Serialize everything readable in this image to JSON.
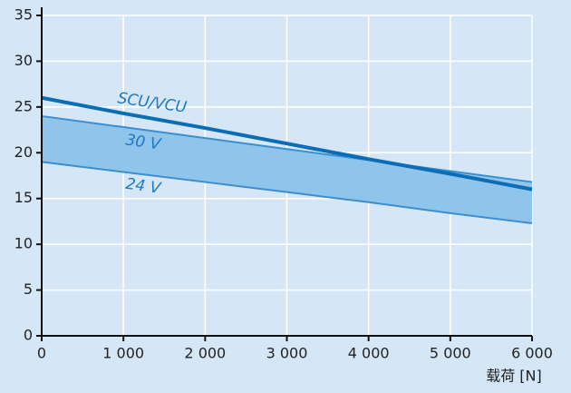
{
  "chart_data": {
    "type": "line",
    "x": [
      0,
      1000,
      2000,
      3000,
      4000,
      5000,
      6000
    ],
    "series": [
      {
        "name": "SCU/VCU",
        "color": "#0b6db5",
        "values": [
          26,
          24.3,
          22.7,
          21,
          19.3,
          17.7,
          16
        ]
      },
      {
        "name": "30 V",
        "color": "#3b8fd1",
        "values": [
          24,
          22.8,
          21.6,
          20.4,
          19.2,
          18,
          16.8
        ]
      },
      {
        "name": "24 V",
        "color": "#3b8fd1",
        "values": [
          19,
          17.9,
          16.8,
          15.7,
          14.6,
          13.4,
          12.3
        ]
      }
    ],
    "fill_between_color": "#8fc4eb",
    "xlabel": "载荷 [N]",
    "xlim": [
      0,
      6000
    ],
    "xticks": [
      0,
      {
        "value": 1000,
        "label": "1 000"
      },
      {
        "value": 2000,
        "label": "2 000"
      },
      {
        "value": 3000,
        "label": "3 000"
      },
      {
        "value": 4000,
        "label": "4 000"
      },
      {
        "value": 5000,
        "label": "5 000"
      },
      {
        "value": 6000,
        "label": "6 000"
      }
    ],
    "ylim": [
      0,
      35
    ],
    "yticks": [
      0,
      5,
      10,
      15,
      20,
      25,
      30,
      35
    ],
    "grid": true
  }
}
